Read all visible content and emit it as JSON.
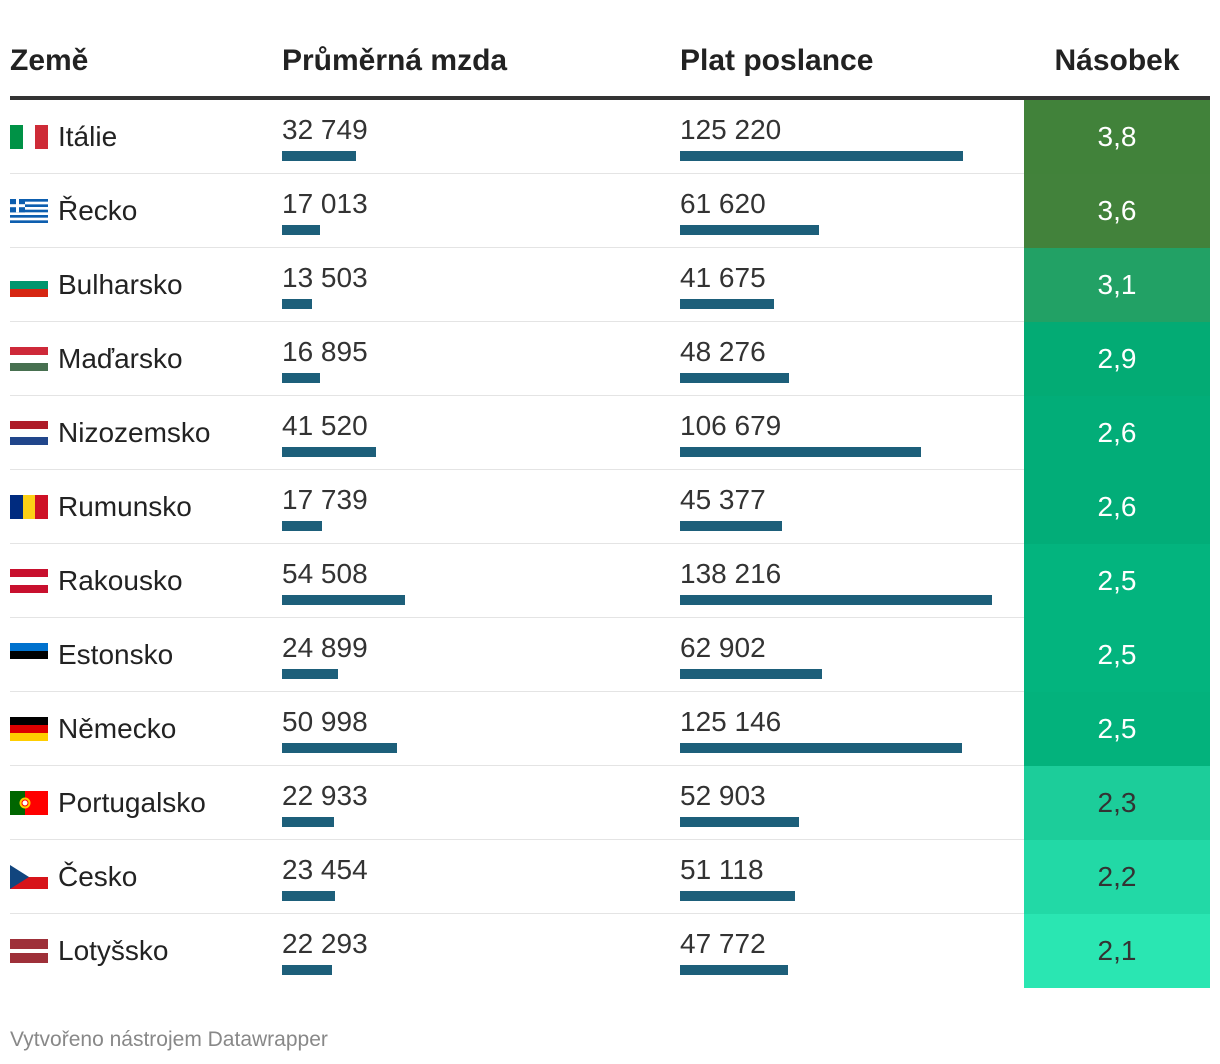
{
  "chart_data": {
    "type": "table",
    "columns": [
      "Země",
      "Průměrná mzda",
      "Plat poslance",
      "Násobek"
    ],
    "rows": [
      {
        "country": "Itálie",
        "avg_wage": "32 749",
        "avg_value": 32749,
        "mp_salary": "125 220",
        "mp_value": 125220,
        "multiple": "3,8",
        "color": "#41823a",
        "text_color": "#ffffff",
        "flag": "italy-flag"
      },
      {
        "country": "Řecko",
        "avg_wage": "17 013",
        "avg_value": 17013,
        "mp_salary": "61 620",
        "mp_value": 61620,
        "multiple": "3,6",
        "color": "#42823b",
        "text_color": "#ffffff",
        "flag": "greece-flag"
      },
      {
        "country": "Bulharsko",
        "avg_wage": "13 503",
        "avg_value": 13503,
        "mp_salary": "41 675",
        "mp_value": 41675,
        "multiple": "3,1",
        "color": "#22a165",
        "text_color": "#ffffff",
        "flag": "bulgaria-flag"
      },
      {
        "country": "Maďarsko",
        "avg_wage": "16 895",
        "avg_value": 16895,
        "mp_salary": "48 276",
        "mp_value": 48276,
        "multiple": "2,9",
        "color": "#03ab74",
        "text_color": "#ffffff",
        "flag": "hungary-flag"
      },
      {
        "country": "Nizozemsko",
        "avg_wage": "41 520",
        "avg_value": 41520,
        "mp_salary": "106 679",
        "mp_value": 106679,
        "multiple": "2,6",
        "color": "#02ad78",
        "text_color": "#ffffff",
        "flag": "netherlands-flag"
      },
      {
        "country": "Rumunsko",
        "avg_wage": "17 739",
        "avg_value": 17739,
        "mp_salary": "45 377",
        "mp_value": 45377,
        "multiple": "2,6",
        "color": "#02ad78",
        "text_color": "#ffffff",
        "flag": "romania-flag"
      },
      {
        "country": "Rakousko",
        "avg_wage": "54 508",
        "avg_value": 54508,
        "mp_salary": "138 216",
        "mp_value": 138216,
        "multiple": "2,5",
        "color": "#03b47e",
        "text_color": "#ffffff",
        "flag": "austria-flag"
      },
      {
        "country": "Estonsko",
        "avg_wage": "24 899",
        "avg_value": 24899,
        "mp_salary": "62 902",
        "mp_value": 62902,
        "multiple": "2,5",
        "color": "#03b47e",
        "text_color": "#ffffff",
        "flag": "estonia-flag"
      },
      {
        "country": "Německo",
        "avg_wage": "50 998",
        "avg_value": 50998,
        "mp_salary": "125 146",
        "mp_value": 125146,
        "multiple": "2,5",
        "color": "#03b27c",
        "text_color": "#ffffff",
        "flag": "germany-flag"
      },
      {
        "country": "Portugalsko",
        "avg_wage": "22 933",
        "avg_value": 22933,
        "mp_salary": "52 903",
        "mp_value": 52903,
        "multiple": "2,3",
        "color": "#1ccd9a",
        "text_color": "#333333",
        "flag": "portugal-flag"
      },
      {
        "country": "Česko",
        "avg_wage": "23 454",
        "avg_value": 23454,
        "mp_salary": "51 118",
        "mp_value": 51118,
        "multiple": "2,2",
        "color": "#22d9a6",
        "text_color": "#333333",
        "flag": "czech-flag"
      },
      {
        "country": "Lotyšsko",
        "avg_wage": "22 293",
        "avg_value": 22293,
        "mp_salary": "47 772",
        "mp_value": 47772,
        "multiple": "2,1",
        "color": "#2ae6b2",
        "text_color": "#333333",
        "flag": "latvia-flag"
      }
    ],
    "bar_color": "#1d5f7a",
    "bar_scale_max": 138216
  },
  "footer": "Vytvořeno nástrojem Datawrapper"
}
